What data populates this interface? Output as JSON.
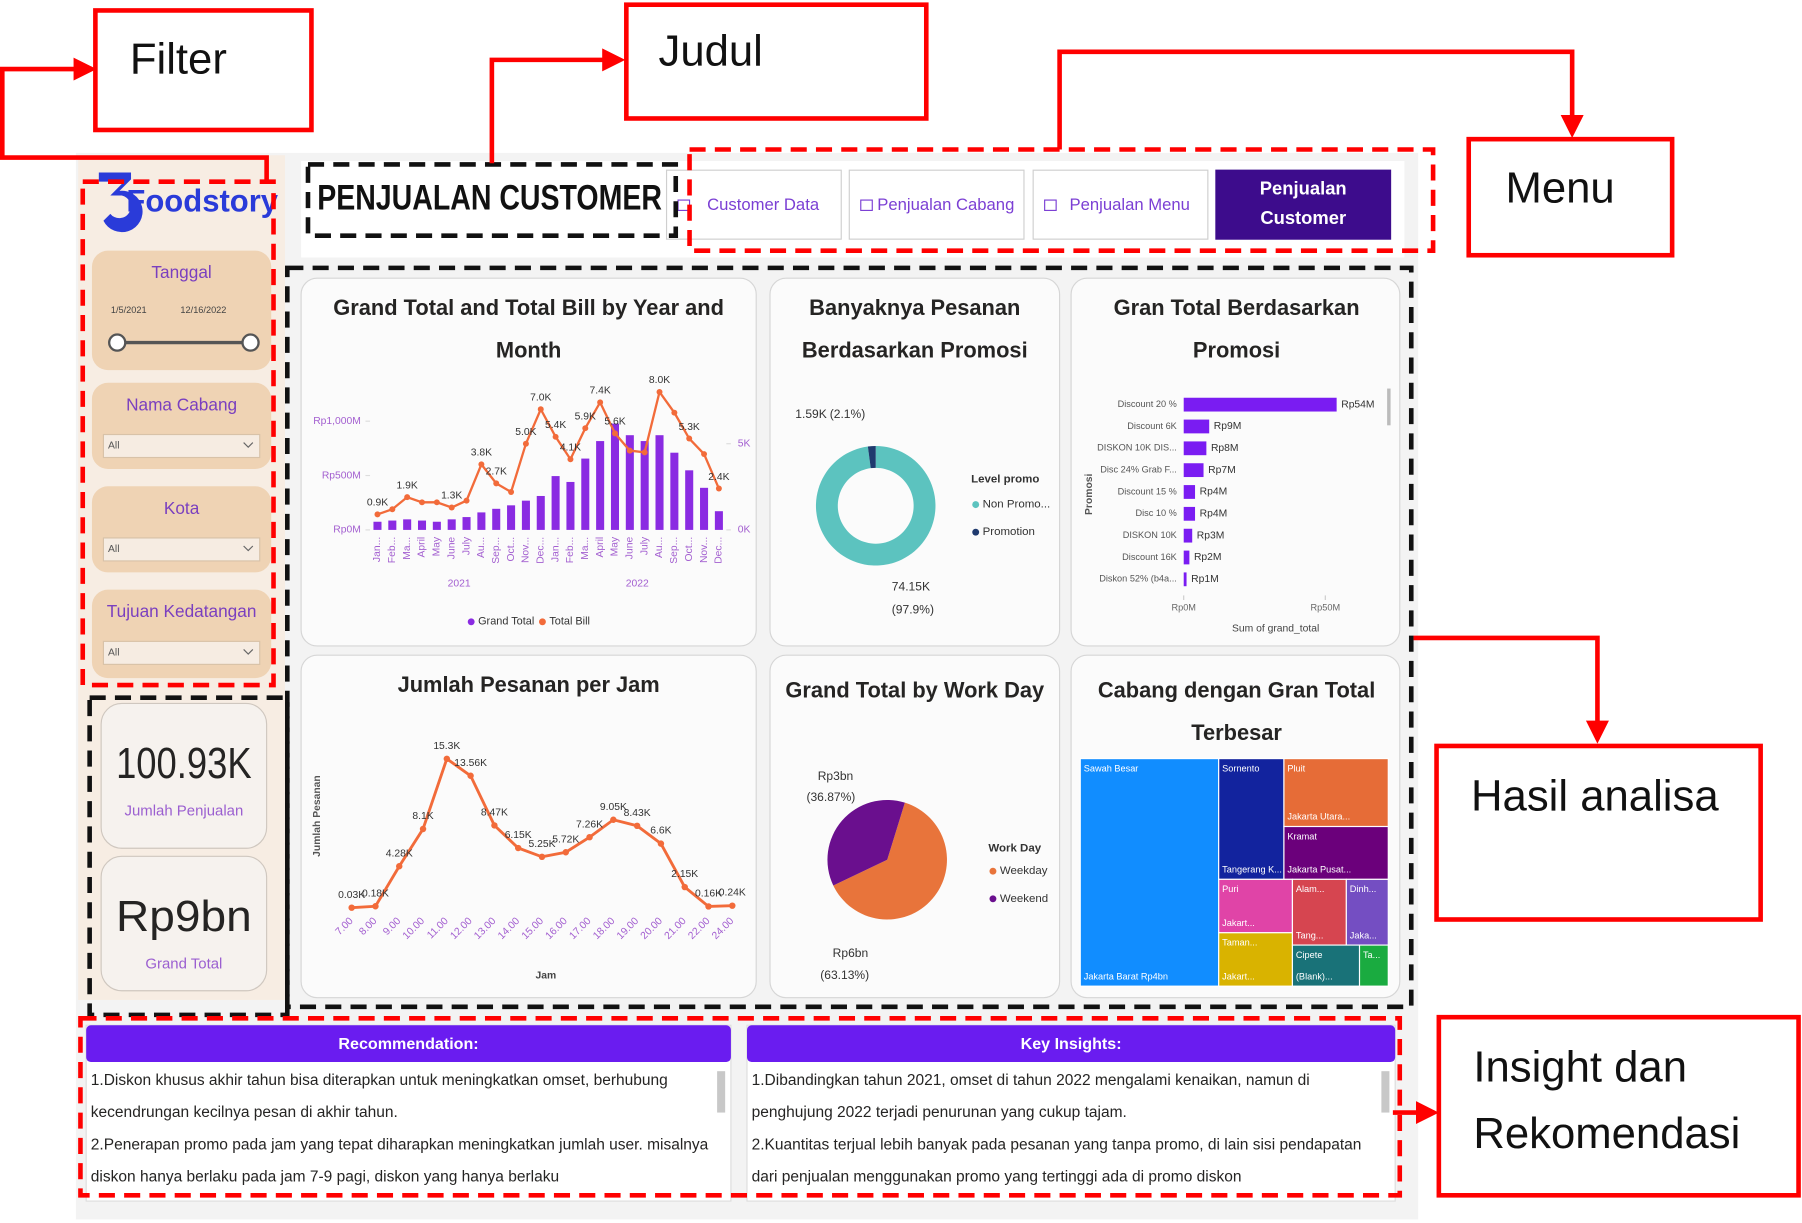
{
  "annotations": {
    "filter": "Filter",
    "title": "Judul",
    "menu": "Menu",
    "analysis": "Hasil analisa",
    "insight": "Insight dan Rekomendasi"
  },
  "sidebar": {
    "logo": "Foodstory",
    "filters": [
      {
        "label": "Tanggal",
        "start": "1/5/2021",
        "end": "12/16/2022"
      },
      {
        "label": "Nama Cabang",
        "value": "All"
      },
      {
        "label": "Kota",
        "value": "All"
      },
      {
        "label": "Tujuan Kedatangan",
        "value": "All"
      }
    ],
    "kpis": [
      {
        "value": "100.93K",
        "label": "Jumlah Penjualan"
      },
      {
        "value": "Rp9bn",
        "label": "Grand Total"
      }
    ]
  },
  "header": {
    "title": "PENJUALAN CUSTOMER"
  },
  "menu": [
    {
      "label": "Customer Data",
      "active": false
    },
    {
      "label": "Penjualan Cabang",
      "active": false
    },
    {
      "label": "Penjualan Menu",
      "active": false
    },
    {
      "label": "Penjualan Customer",
      "active": true
    }
  ],
  "chart_data": [
    {
      "type": "combo",
      "title": "Grand Total and Total Bill by Year and Month",
      "categories": [
        "Jan...",
        "Feb...",
        "Ma...",
        "April",
        "May",
        "June",
        "July",
        "Au...",
        "Sep...",
        "Oct...",
        "Nov...",
        "Dec...",
        "Jan...",
        "Feb...",
        "Ma...",
        "April",
        "May",
        "June",
        "July",
        "Au...",
        "Sep...",
        "Oct...",
        "Nov...",
        "Dec..."
      ],
      "x_groups": [
        "2021",
        "2022"
      ],
      "series": [
        {
          "name": "Grand Total",
          "kind": "bar",
          "color": "#8a2be2",
          "values": [
            75000000,
            86000000,
            97000000,
            86000000,
            75000000,
            97000000,
            118000000,
            161000000,
            194000000,
            226000000,
            269000000,
            312000000,
            495000000,
            441000000,
            656000000,
            817000000,
            978000000,
            871000000,
            817000000,
            871000000,
            710000000,
            548000000,
            387000000,
            172000000
          ]
        },
        {
          "name": "Total Bill",
          "kind": "line",
          "axis": "y2",
          "color": "#f26b3a",
          "values": [
            900,
            1200,
            1900,
            1600,
            1600,
            1300,
            1700,
            3800,
            2700,
            2200,
            5000,
            7000,
            5400,
            4100,
            5900,
            7400,
            5600,
            4600,
            4500,
            8000,
            6800,
            5300,
            4400,
            2400
          ],
          "value_labels": [
            "0.9K",
            null,
            "1.9K",
            null,
            null,
            "1.3K",
            null,
            "3.8K",
            "2.7K",
            null,
            "5.0K",
            "7.0K",
            "5.4K",
            "4.1K",
            "5.9K",
            "7.4K",
            "5.6K",
            null,
            null,
            "8.0K",
            null,
            "5.3K",
            null,
            "2.4K"
          ]
        }
      ],
      "ylim": [
        0,
        1300000000
      ],
      "yticks": [
        {
          "value": 0,
          "label": "Rp0M"
        },
        {
          "value": 500000000,
          "label": "Rp500M"
        },
        {
          "value": 1000000000,
          "label": "Rp1,000M"
        }
      ],
      "y2lim": [
        0,
        8200
      ],
      "y2ticks": [
        {
          "value": 0,
          "label": "0K"
        },
        {
          "value": 5000,
          "label": "5K"
        }
      ],
      "legend": "bottom"
    },
    {
      "type": "donut",
      "title": "Banyaknya Pesanan Berdasarkan Promosi",
      "legend_title": "Level promo",
      "categories": [
        "Non Promo...",
        "Promotion"
      ],
      "colors": [
        "#5cc3bf",
        "#1f3a6e"
      ],
      "values": [
        74150,
        1590
      ],
      "value_labels": [
        "74.15K",
        "1.59K"
      ],
      "percent_labels": [
        "(97.9%)",
        "(2.1%)"
      ]
    },
    {
      "type": "hbar",
      "title": "Gran Total Berdasarkan Promosi",
      "color": "#7a1cf2",
      "categories": [
        "Discount 20 %",
        "Discount 6K",
        "DISKON 10K DIS...",
        "Disc 24% Grab F...",
        "Discount 15 %",
        "Disc 10 %",
        "DISKON 10K",
        "Discount 16K",
        "Diskon 52% (b4a..."
      ],
      "values": [
        54000000,
        9000000,
        8000000,
        7000000,
        4000000,
        4000000,
        3000000,
        2000000,
        1000000
      ],
      "value_labels": [
        "Rp54M",
        "Rp9M",
        "Rp8M",
        "Rp7M",
        "Rp4M",
        "Rp4M",
        "Rp3M",
        "Rp2M",
        "Rp1M"
      ],
      "xlim": [
        0,
        56000000
      ],
      "xticks": [
        {
          "value": 0,
          "label": "Rp0M"
        },
        {
          "value": 50000000,
          "label": "Rp50M"
        }
      ],
      "y_label": "Promosi",
      "x_label": "Sum of grand_total"
    },
    {
      "type": "line",
      "title": "Jumlah Pesanan per Jam",
      "color": "#f26b3a",
      "categories": [
        "7.00",
        "8.00",
        "9.00",
        "10.00",
        "11.00",
        "12.00",
        "13.00",
        "14.00",
        "15.00",
        "16.00",
        "17.00",
        "18.00",
        "19.00",
        "20.00",
        "21.00",
        "22.00",
        "24.00"
      ],
      "values": [
        30,
        180,
        4280,
        8100,
        15300,
        13560,
        8470,
        6150,
        5250,
        5720,
        7260,
        9050,
        8430,
        6600,
        2150,
        160,
        240
      ],
      "value_labels": [
        "0.03K",
        "0.18K",
        "4.28K",
        "8.1K",
        "15.3K",
        "13.56K",
        "8.47K",
        "6.15K",
        "5.25K",
        "5.72K",
        "7.26K",
        "9.05K",
        "8.43K",
        "6.6K",
        "2.15K",
        "0.16K",
        "0.24K"
      ],
      "ylim": [
        0,
        16500
      ],
      "y_label": "Jumlah Pesanan",
      "x_label": "Jam"
    },
    {
      "type": "pie",
      "title": "Grand Total by Work Day",
      "legend_title": "Work Day",
      "categories": [
        "Weekday",
        "Weekend"
      ],
      "colors": [
        "#e8743b",
        "#6a0f8e"
      ],
      "values": [
        5682000000,
        3318000000
      ],
      "value_labels": [
        "Rp6bn",
        "Rp3bn"
      ],
      "percent_labels": [
        "(63.13%)",
        "(36.87%)"
      ]
    },
    {
      "type": "treemap",
      "title": "Cabang dengan Gran Total Terbesar",
      "tiles": [
        {
          "name": "Sawah Besar",
          "group": "Jakarta Barat Rp4bn",
          "color": "#118dff",
          "value": 4000000000
        },
        {
          "name": "Sornento",
          "group": "Tangerang K...",
          "color": "#12239e",
          "value": 1000000000
        },
        {
          "name": "Pluit",
          "group": "Jakarta Utara...",
          "color": "#e66c37",
          "value": 900000000
        },
        {
          "name": "Kramat",
          "group": "Jakarta Pusat...",
          "color": "#6b007b",
          "value": 700000000
        },
        {
          "name": "Puri",
          "group": "Jakart...",
          "color": "#e044a7",
          "value": 500000000
        },
        {
          "name": "Taman...",
          "group": "Jakart...",
          "color": "#d9b300",
          "value": 500000000
        },
        {
          "name": "Alam...",
          "group": "Tang...",
          "color": "#d64550",
          "value": 450000000
        },
        {
          "name": "Dinh...",
          "group": "Jaka...",
          "color": "#744ec2",
          "value": 350000000
        },
        {
          "name": "Cipete",
          "group": "(Blank)...",
          "color": "#197278",
          "value": 350000000
        },
        {
          "name": "Ta...",
          "group": null,
          "color": "#1aab40",
          "value": 150000000
        }
      ]
    }
  ],
  "panels": [
    {
      "title": "Recommendation:",
      "items": [
        "1.Diskon khusus akhir tahun bisa diterapkan untuk meningkatkan omset, berhubung kecendrungan kecilnya pesan di akhir tahun.",
        "2.Penerapan promo pada jam yang tepat diharapkan meningkatkan jumlah user. misalnya diskon hanya berlaku pada jam 7-9 pagi, diskon yang hanya berlaku"
      ]
    },
    {
      "title": "Key Insights:",
      "items": [
        "1.Dibandingkan tahun 2021, omset di tahun 2022 mengalami kenaikan, namun di penghujung 2022 terjadi penurunan yang cukup tajam.",
        "2.Kuantitas terjual lebih banyak pada pesanan yang tanpa promo, di lain sisi pendapatan dari penjualan menggunakan promo yang tertinggi ada di promo diskon"
      ]
    }
  ]
}
